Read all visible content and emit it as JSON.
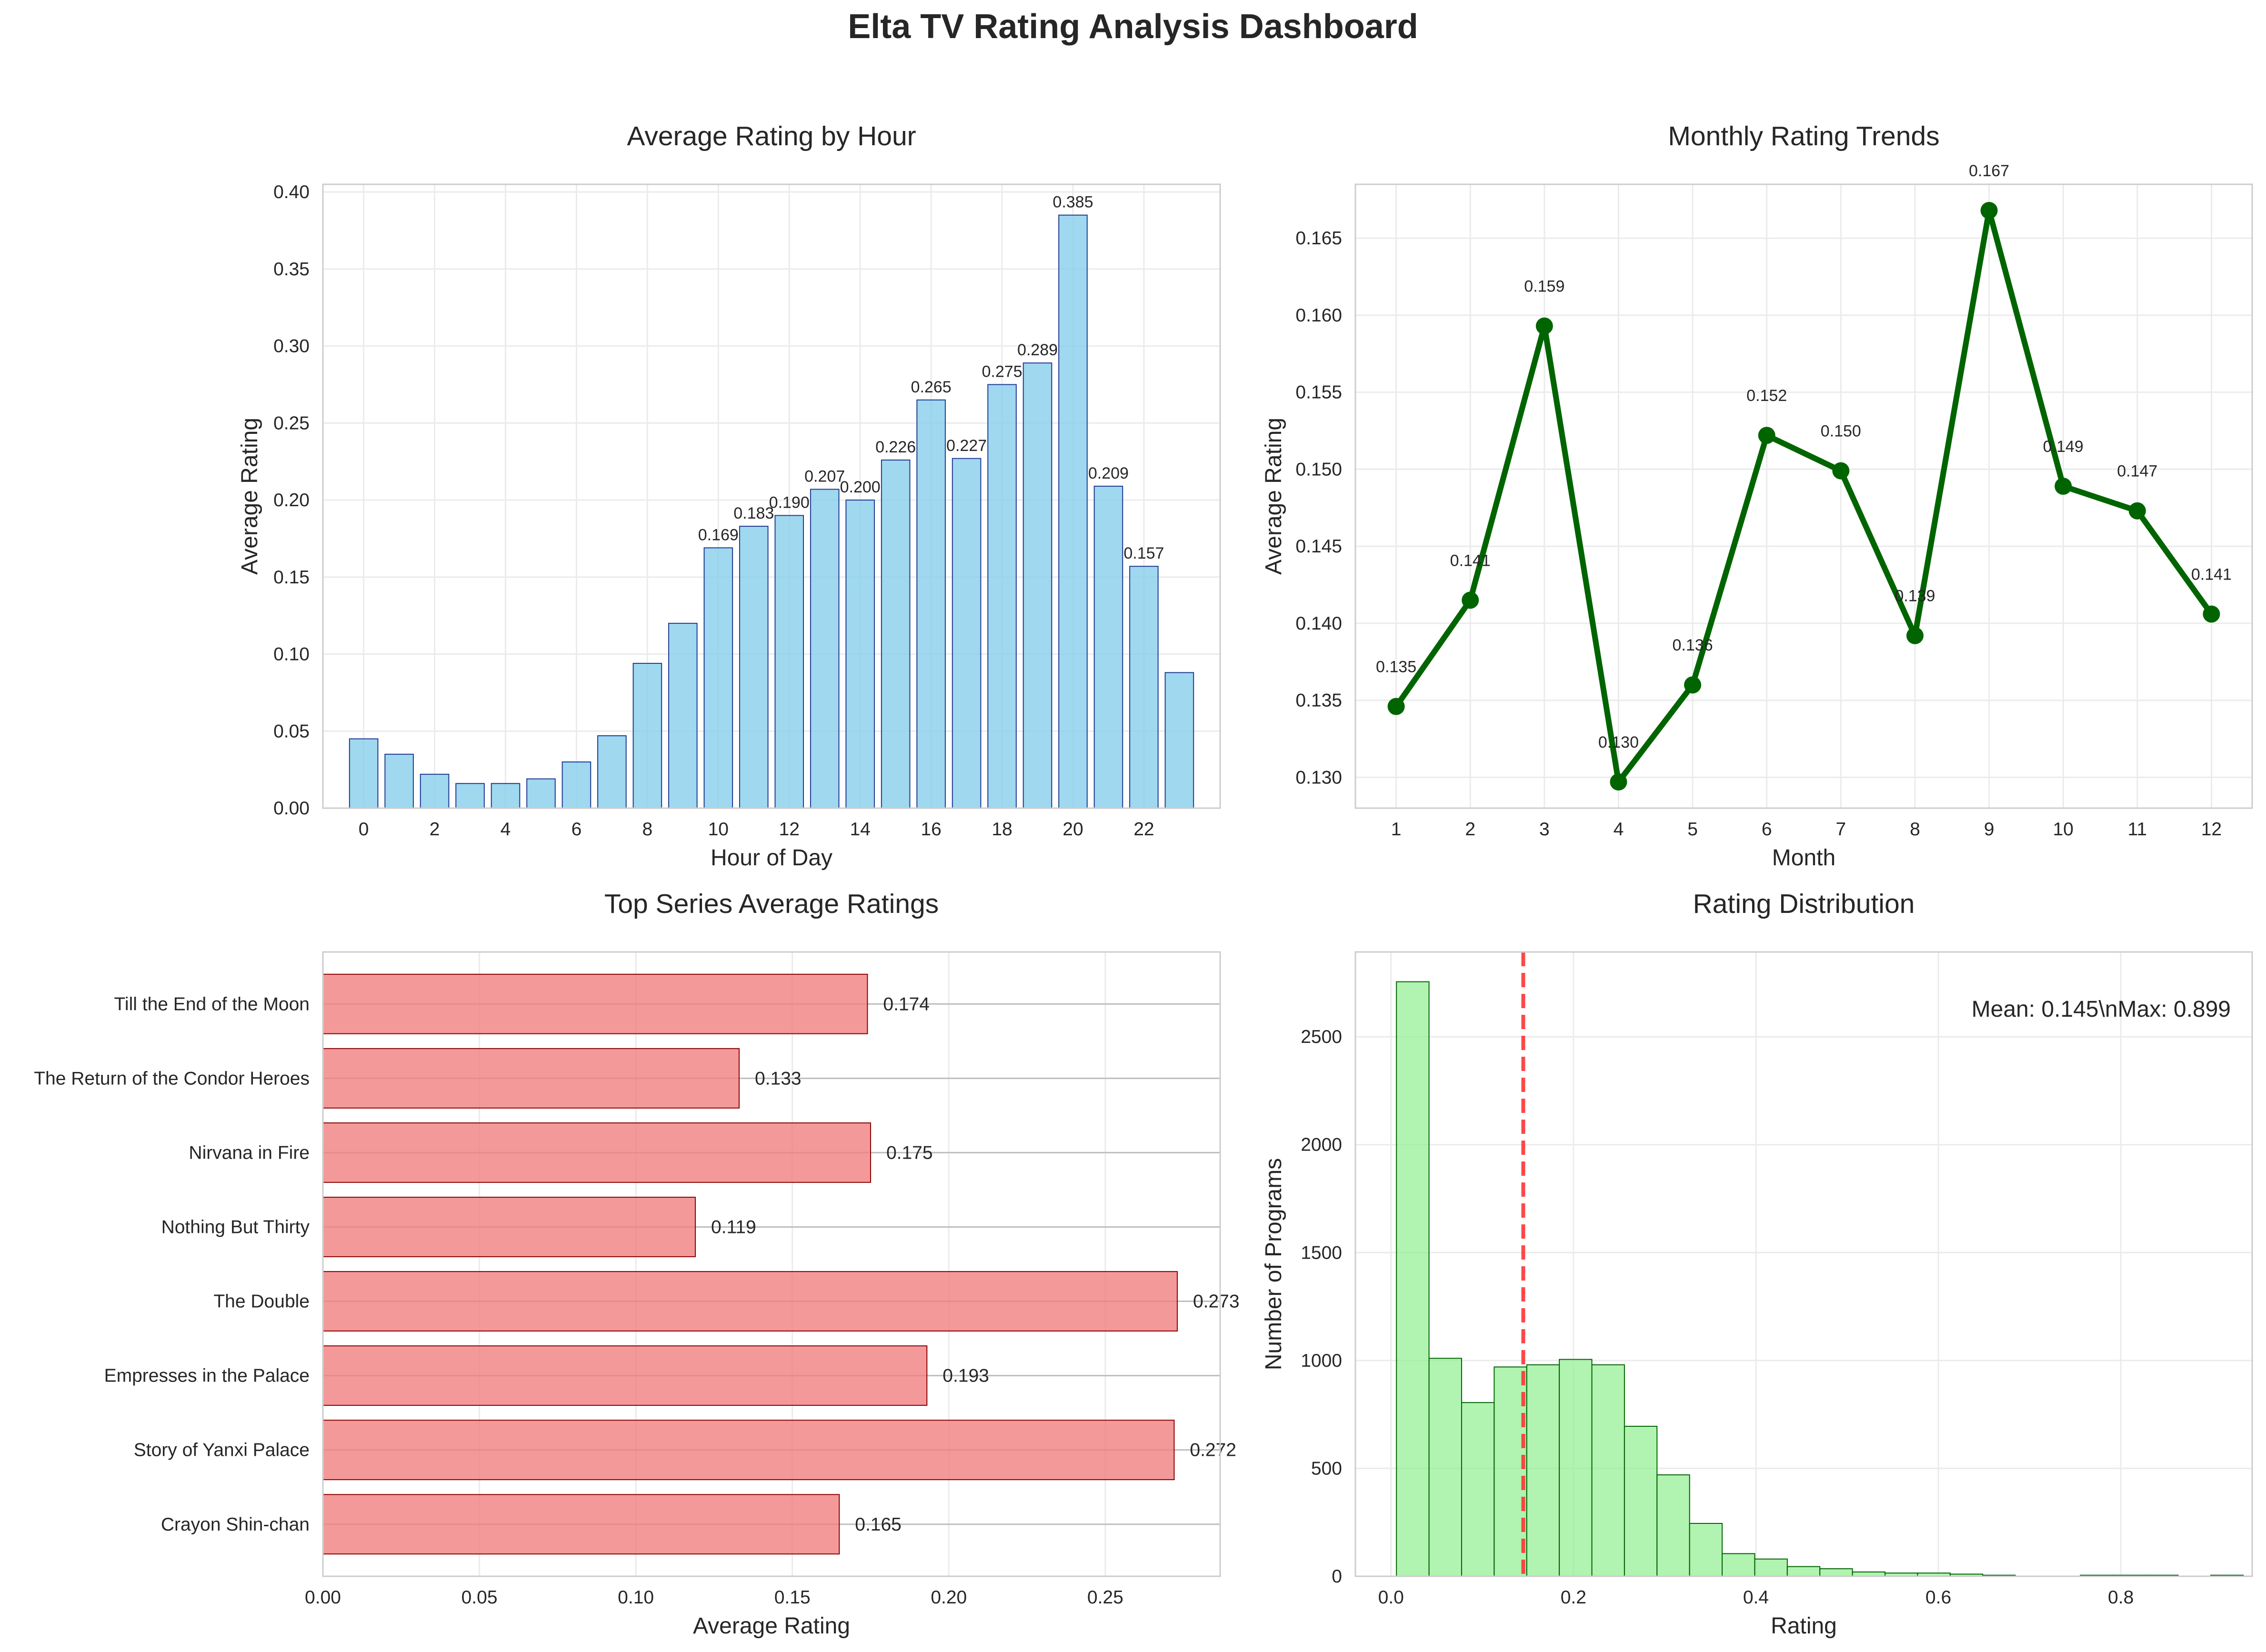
{
  "title": "Elta TV Rating Analysis Dashboard",
  "chart_data": [
    {
      "type": "bar",
      "title": "Average Rating by Hour",
      "xlabel": "Hour of Day",
      "ylabel": "Average Rating",
      "x": [
        0,
        1,
        2,
        3,
        4,
        5,
        6,
        7,
        8,
        9,
        10,
        11,
        12,
        13,
        14,
        15,
        16,
        17,
        18,
        19,
        20,
        21,
        22,
        23
      ],
      "values": [
        0.045,
        0.035,
        0.022,
        0.016,
        0.016,
        0.019,
        0.03,
        0.047,
        0.094,
        0.12,
        0.169,
        0.183,
        0.19,
        0.207,
        0.2,
        0.226,
        0.265,
        0.227,
        0.275,
        0.289,
        0.385,
        0.209,
        0.157,
        0.088
      ],
      "value_labels": [
        "",
        "",
        "",
        "",
        "",
        "",
        "",
        "",
        "",
        "",
        "0.169",
        "0.183",
        "0.190",
        "0.207",
        "0.200",
        "0.226",
        "0.265",
        "0.227",
        "0.275",
        "0.289",
        "0.385",
        "0.209",
        "0.157",
        ""
      ],
      "xticks": [
        "0",
        "2",
        "4",
        "6",
        "8",
        "10",
        "12",
        "14",
        "16",
        "18",
        "20",
        "22"
      ],
      "yticks": [
        "0.00",
        "0.05",
        "0.10",
        "0.15",
        "0.20",
        "0.25",
        "0.30",
        "0.35",
        "0.40"
      ],
      "ylim": [
        0,
        0.405
      ],
      "grid": true,
      "colors": {
        "fill": "#87ceeb",
        "edge": "#1f3a93"
      }
    },
    {
      "type": "line",
      "title": "Monthly Rating Trends",
      "xlabel": "Month",
      "ylabel": "Average Rating",
      "x": [
        1,
        2,
        3,
        4,
        5,
        6,
        7,
        8,
        9,
        10,
        11,
        12
      ],
      "values": [
        0.1346,
        0.1415,
        0.1593,
        0.1297,
        0.136,
        0.1522,
        0.1499,
        0.1392,
        0.1668,
        0.1489,
        0.1473,
        0.1406
      ],
      "value_labels": [
        "0.135",
        "0.141",
        "0.159",
        "0.130",
        "0.136",
        "0.152",
        "0.150",
        "0.139",
        "0.167",
        "0.149",
        "0.147",
        "0.141"
      ],
      "xticks": [
        "1",
        "2",
        "3",
        "4",
        "5",
        "6",
        "7",
        "8",
        "9",
        "10",
        "11",
        "12"
      ],
      "yticks": [
        "0.130",
        "0.135",
        "0.140",
        "0.145",
        "0.150",
        "0.155",
        "0.160",
        "0.165"
      ],
      "ylim": [
        0.128,
        0.1685
      ],
      "xlim": [
        0.45,
        12.55
      ],
      "grid": true,
      "colors": {
        "line": "#006400"
      }
    },
    {
      "type": "bar",
      "orientation": "horizontal",
      "title": "Top Series Average Ratings",
      "xlabel": "Average Rating",
      "categories": [
        "Till the End of the Moon",
        "The Return of the Condor Heroes",
        "Nirvana in Fire",
        "Nothing But Thirty",
        "The Double",
        "Empresses in the Palace",
        "Story of Yanxi Palace",
        "Crayon Shin-chan"
      ],
      "values": [
        0.174,
        0.133,
        0.175,
        0.119,
        0.273,
        0.193,
        0.272,
        0.165
      ],
      "value_labels": [
        "0.174",
        "0.133",
        "0.175",
        "0.119",
        "0.273",
        "0.193",
        "0.272",
        "0.165"
      ],
      "xticks": [
        "0.00",
        "0.05",
        "0.10",
        "0.15",
        "0.20",
        "0.25"
      ],
      "xlim": [
        0,
        0.2867
      ],
      "grid": true,
      "colors": {
        "fill": "#f08080",
        "edge": "#8b0000"
      }
    },
    {
      "type": "bar",
      "subtype": "histogram",
      "title": "Rating Distribution",
      "xlabel": "Rating",
      "ylabel": "Number of Programs",
      "bin_start": 0.006,
      "bin_width": 0.0357,
      "counts": [
        2755,
        1010,
        805,
        970,
        980,
        1005,
        980,
        695,
        470,
        245,
        105,
        80,
        45,
        35,
        20,
        15,
        15,
        10,
        5,
        0,
        0,
        5,
        5,
        5,
        0,
        5
      ],
      "xticks": [
        "0.0",
        "0.2",
        "0.4",
        "0.6",
        "0.8"
      ],
      "yticks": [
        "0",
        "500",
        "1000",
        "1500",
        "2000",
        "2500"
      ],
      "xlim": [
        -0.039,
        0.944
      ],
      "ylim": [
        0,
        2893
      ],
      "mean_line": 0.145,
      "annotation": "Mean: 0.145\\nMax: 0.899",
      "grid": true,
      "colors": {
        "fill": "#90ee90",
        "edge": "#006400",
        "mean_line": "#ff3333"
      }
    }
  ]
}
